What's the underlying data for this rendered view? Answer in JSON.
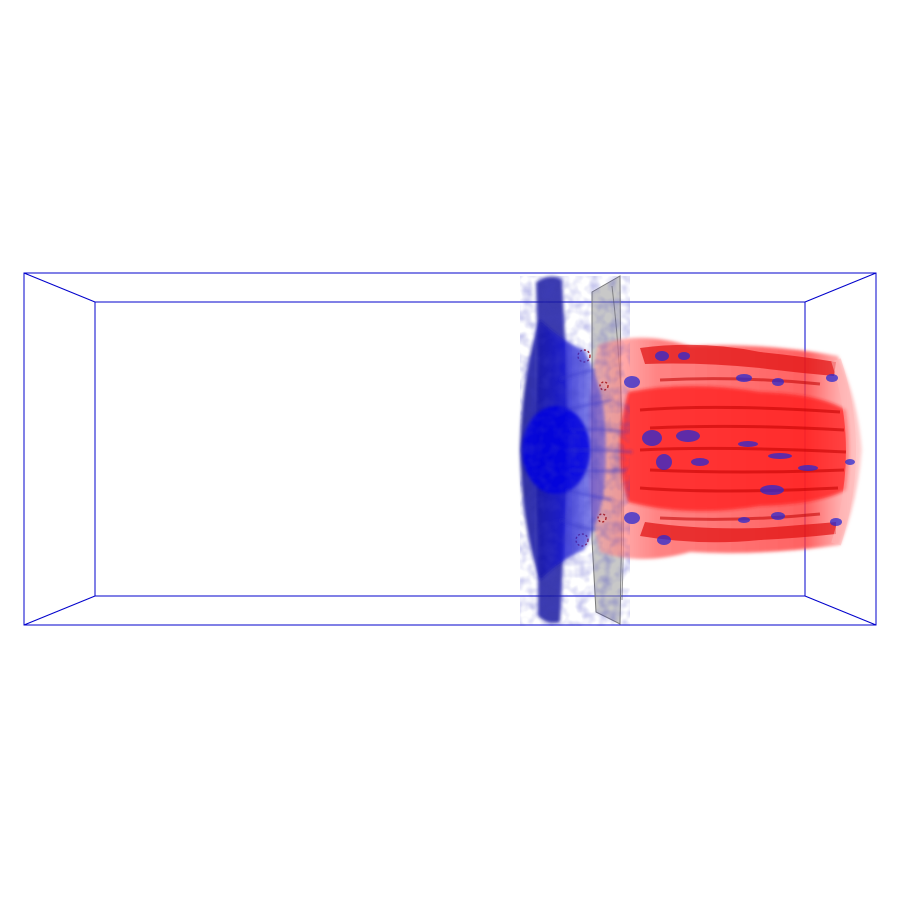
{
  "scene": {
    "background": "#ffffff",
    "domain_box_color": "#0000cc",
    "isosurfaces": [
      {
        "name": "negative-value-surface",
        "color": "#1010c0"
      },
      {
        "name": "positive-value-surface",
        "color": "#e60000"
      },
      {
        "name": "shock-front-surface",
        "color": "#9a9a9a"
      }
    ]
  }
}
